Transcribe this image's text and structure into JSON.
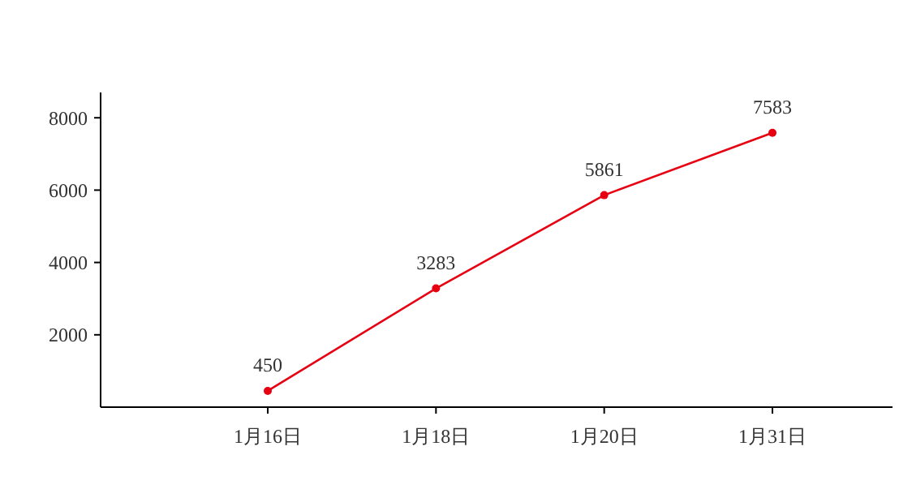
{
  "chart_data": {
    "type": "line",
    "categories": [
      "1月16日",
      "1月18日",
      "1月20日",
      "1月31日"
    ],
    "series": [
      {
        "color": "#e60012",
        "values": [
          450,
          3283,
          5861,
          7583
        ]
      }
    ],
    "ylim": [
      0,
      8700
    ],
    "yticks": [
      2000,
      4000,
      6000,
      8000
    ],
    "data_labels": true,
    "marker": "circle"
  }
}
